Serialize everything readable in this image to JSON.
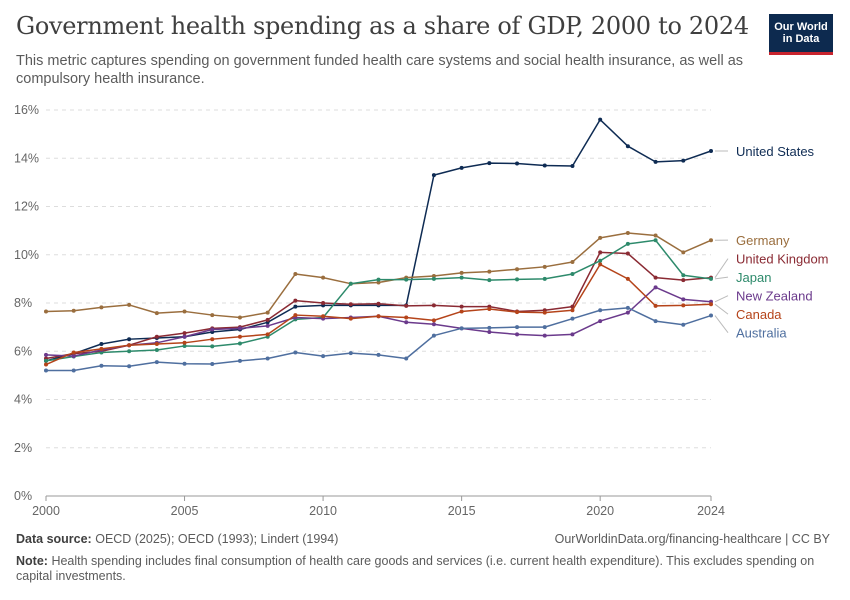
{
  "header": {
    "title": "Government health spending as a share of GDP, 2000 to 2024",
    "subtitle": "This metric captures spending on government funded health care systems and social health insurance, as well as compulsory health insurance.",
    "logo_line1": "Our World",
    "logo_line2": "in Data"
  },
  "footer": {
    "source_label": "Data source:",
    "source_text": "OECD (2025); OECD (1993); Lindert (1994)",
    "url": "OurWorldinData.org/financing-healthcare | CC BY",
    "note_label": "Note:",
    "note_text": "Health spending includes final consumption of health care goods and services (i.e. current health expenditure). This excludes spending on capital investments."
  },
  "chart_data": {
    "type": "line",
    "title": "Government health spending as a share of GDP, 2000 to 2024",
    "xlim": [
      2000,
      2024
    ],
    "ylim": [
      0,
      16
    ],
    "x_ticks": [
      "2000",
      "2005",
      "2010",
      "2015",
      "2020",
      "2024"
    ],
    "y_ticks": [
      "0%",
      "2%",
      "4%",
      "6%",
      "8%",
      "10%",
      "12%",
      "14%",
      "16%"
    ],
    "grid": "horizontal dashed",
    "x": [
      2000,
      2001,
      2002,
      2003,
      2004,
      2005,
      2006,
      2007,
      2008,
      2009,
      2010,
      2011,
      2012,
      2013,
      2014,
      2015,
      2016,
      2017,
      2018,
      2019,
      2020,
      2021,
      2022,
      2023,
      2024
    ],
    "series": [
      {
        "name": "United States",
        "color": "#0e2b53",
        "values": [
          5.6,
          5.9,
          6.3,
          6.5,
          6.55,
          6.6,
          6.8,
          6.9,
          7.2,
          7.85,
          7.9,
          7.9,
          7.9,
          7.9,
          13.3,
          13.6,
          13.8,
          13.78,
          13.7,
          13.68,
          15.6,
          14.5,
          13.85,
          13.9,
          14.3
        ]
      },
      {
        "name": "Germany",
        "color": "#9a6e3e",
        "values": [
          7.65,
          7.68,
          7.82,
          7.92,
          7.58,
          7.65,
          7.5,
          7.4,
          7.6,
          9.2,
          9.05,
          8.8,
          8.85,
          9.05,
          9.12,
          9.25,
          9.3,
          9.4,
          9.5,
          9.7,
          10.7,
          10.9,
          10.8,
          10.1,
          10.6
        ]
      },
      {
        "name": "United Kingdom",
        "color": "#8a2a33",
        "values": [
          5.7,
          5.9,
          6.0,
          6.25,
          6.6,
          6.75,
          6.95,
          7.0,
          7.3,
          8.1,
          8.0,
          7.95,
          7.97,
          7.88,
          7.9,
          7.85,
          7.85,
          7.65,
          7.7,
          7.85,
          10.1,
          10.05,
          9.05,
          8.95,
          9.05
        ]
      },
      {
        "name": "Japan",
        "color": "#2d8a6b",
        "values": [
          5.6,
          5.78,
          5.95,
          6.0,
          6.05,
          6.22,
          6.2,
          6.32,
          6.6,
          7.32,
          7.4,
          8.8,
          8.97,
          8.97,
          9.0,
          9.05,
          8.95,
          8.98,
          9.0,
          9.2,
          9.75,
          10.45,
          10.6,
          9.15,
          9.0
        ]
      },
      {
        "name": "New Zealand",
        "color": "#6b3a8c",
        "values": [
          5.85,
          5.8,
          6.05,
          6.25,
          6.35,
          6.6,
          6.9,
          6.95,
          7.05,
          7.4,
          7.35,
          7.4,
          7.45,
          7.2,
          7.12,
          6.95,
          6.8,
          6.7,
          6.65,
          6.7,
          7.25,
          7.6,
          8.65,
          8.15,
          8.05
        ]
      },
      {
        "name": "Canada",
        "color": "#b5441a",
        "values": [
          5.45,
          5.95,
          6.1,
          6.25,
          6.3,
          6.35,
          6.5,
          6.6,
          6.7,
          7.5,
          7.45,
          7.35,
          7.45,
          7.4,
          7.28,
          7.65,
          7.75,
          7.62,
          7.6,
          7.7,
          9.6,
          9.0,
          7.88,
          7.9,
          7.95
        ]
      },
      {
        "name": "Australia",
        "color": "#4f6f9f",
        "values": [
          5.2,
          5.2,
          5.4,
          5.38,
          5.55,
          5.48,
          5.47,
          5.6,
          5.7,
          5.95,
          5.8,
          5.92,
          5.85,
          5.7,
          6.65,
          6.95,
          6.97,
          7.0,
          7.0,
          7.35,
          7.7,
          7.8,
          7.25,
          7.1,
          7.48
        ]
      }
    ]
  }
}
